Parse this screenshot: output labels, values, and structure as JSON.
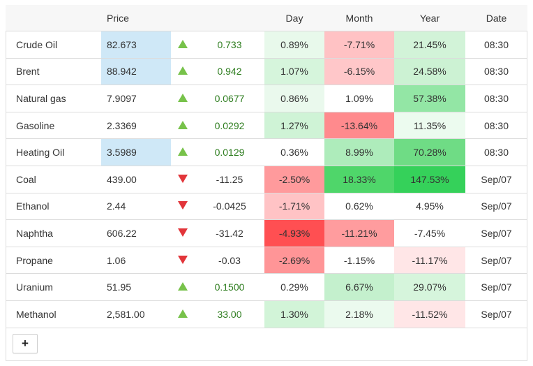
{
  "headers": {
    "name": "",
    "price": "Price",
    "arrow": "",
    "change": "",
    "day": "Day",
    "month": "Month",
    "year": "Year",
    "date": "Date"
  },
  "rows": [
    {
      "name": "Crude Oil",
      "price": "82.673",
      "price_highlight": true,
      "direction": "up",
      "change": "0.733",
      "day": "0.89%",
      "day_bg": "#e8f9eb",
      "month": "-7.71%",
      "month_bg": "#ffc2c4",
      "year": "21.45%",
      "year_bg": "#d2f3d8",
      "date": "08:30"
    },
    {
      "name": "Brent",
      "price": "88.942",
      "price_highlight": true,
      "direction": "up",
      "change": "0.942",
      "day": "1.07%",
      "day_bg": "#d6f5dc",
      "month": "-6.15%",
      "month_bg": "#ffc7c9",
      "year": "24.58%",
      "year_bg": "#ccf2d3",
      "date": "08:30"
    },
    {
      "name": "Natural gas",
      "price": "7.9097",
      "price_highlight": false,
      "direction": "up",
      "change": "0.0677",
      "day": "0.86%",
      "day_bg": "#eaf9ed",
      "month": "1.09%",
      "month_bg": "#ffffff",
      "year": "57.38%",
      "year_bg": "#93e6a5",
      "date": "08:30"
    },
    {
      "name": "Gasoline",
      "price": "2.3369",
      "price_highlight": false,
      "direction": "up",
      "change": "0.0292",
      "day": "1.27%",
      "day_bg": "#cff3d6",
      "month": "-13.64%",
      "month_bg": "#ff8a8d",
      "year": "11.35%",
      "year_bg": "#ecfbef",
      "date": "08:30"
    },
    {
      "name": "Heating Oil",
      "price": "3.5989",
      "price_highlight": true,
      "direction": "up",
      "change": "0.0129",
      "day": "0.36%",
      "day_bg": "#ffffff",
      "month": "8.99%",
      "month_bg": "#aeecbb",
      "year": "70.28%",
      "year_bg": "#6fdc85",
      "date": "08:30"
    },
    {
      "name": "Coal",
      "price": "439.00",
      "price_highlight": false,
      "direction": "down",
      "change": "-11.25",
      "day": "-2.50%",
      "day_bg": "#ff9a9c",
      "month": "18.33%",
      "month_bg": "#4fd66a",
      "year": "147.53%",
      "year_bg": "#35d15a",
      "date": "Sep/07"
    },
    {
      "name": "Ethanol",
      "price": "2.44",
      "price_highlight": false,
      "direction": "down",
      "change": "-0.0425",
      "day": "-1.71%",
      "day_bg": "#ffc3c5",
      "month": "0.62%",
      "month_bg": "#ffffff",
      "year": "4.95%",
      "year_bg": "#ffffff",
      "date": "Sep/07"
    },
    {
      "name": "Naphtha",
      "price": "606.22",
      "price_highlight": false,
      "direction": "down",
      "change": "-31.42",
      "day": "-4.93%",
      "day_bg": "#ff4f52",
      "month": "-11.21%",
      "month_bg": "#ff9c9e",
      "year": "-7.45%",
      "year_bg": "#ffffff",
      "date": "Sep/07"
    },
    {
      "name": "Propane",
      "price": "1.06",
      "price_highlight": false,
      "direction": "down",
      "change": "-0.03",
      "day": "-2.69%",
      "day_bg": "#ff9597",
      "month": "-1.15%",
      "month_bg": "#ffffff",
      "year": "-11.17%",
      "year_bg": "#ffe6e7",
      "date": "Sep/07"
    },
    {
      "name": "Uranium",
      "price": "51.95",
      "price_highlight": false,
      "direction": "up",
      "change": "0.1500",
      "day": "0.29%",
      "day_bg": "#ffffff",
      "month": "6.67%",
      "month_bg": "#c4f0cd",
      "year": "29.07%",
      "year_bg": "#d6f5dc",
      "date": "Sep/07"
    },
    {
      "name": "Methanol",
      "price": "2,581.00",
      "price_highlight": false,
      "direction": "up",
      "change": "33.00",
      "day": "1.30%",
      "day_bg": "#d2f4d8",
      "month": "2.18%",
      "month_bg": "#ebfaee",
      "year": "-11.52%",
      "year_bg": "#ffe6e7",
      "date": "Sep/07"
    }
  ],
  "colors": {
    "price_highlight": "#cfe8f7",
    "arrow_up": "#77c24a",
    "arrow_down": "#e2353a",
    "change_positive": "#2e7d1f",
    "change_negative": "#333333"
  },
  "add_button": {
    "label": "+",
    "icon": "plus-icon"
  }
}
